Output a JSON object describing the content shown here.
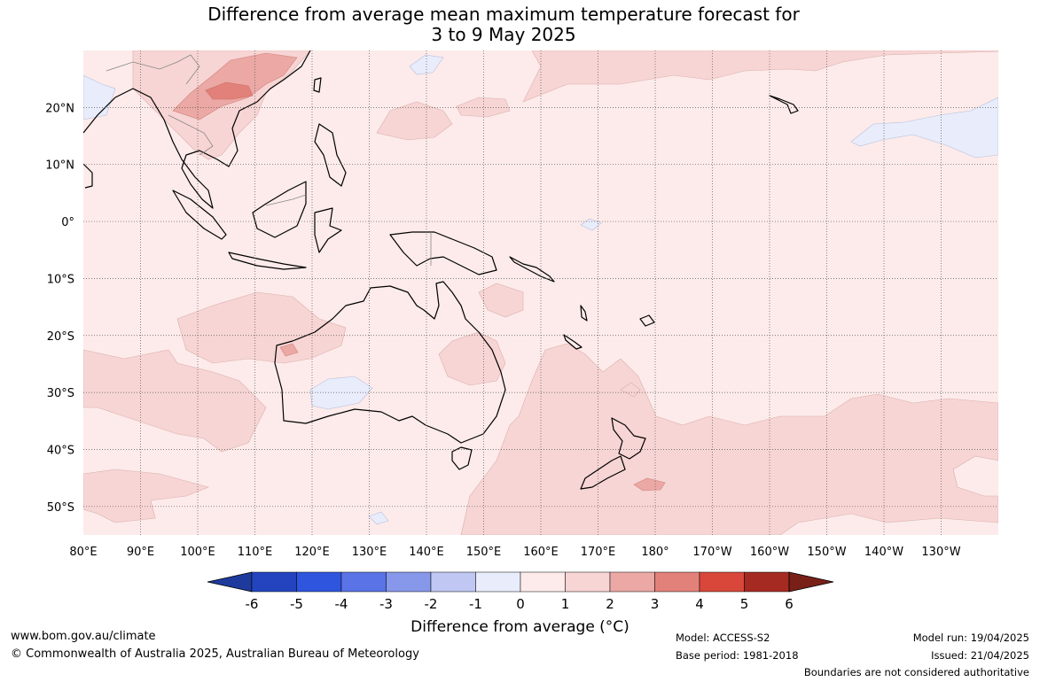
{
  "title": {
    "line1": "Difference from average mean maximum temperature forecast for",
    "line2": "3 to 9 May 2025"
  },
  "map": {
    "lon_range": [
      80,
      240
    ],
    "lat_range": [
      -55,
      30
    ],
    "lon_ticks": [
      {
        "value": 80,
        "label": "80°E"
      },
      {
        "value": 90,
        "label": "90°E"
      },
      {
        "value": 100,
        "label": "100°E"
      },
      {
        "value": 110,
        "label": "110°E"
      },
      {
        "value": 120,
        "label": "120°E"
      },
      {
        "value": 130,
        "label": "130°E"
      },
      {
        "value": 140,
        "label": "140°E"
      },
      {
        "value": 150,
        "label": "150°E"
      },
      {
        "value": 160,
        "label": "160°E"
      },
      {
        "value": 170,
        "label": "170°E"
      },
      {
        "value": 180,
        "label": "180°"
      },
      {
        "value": 190,
        "label": "170°W"
      },
      {
        "value": 200,
        "label": "160°W"
      },
      {
        "value": 210,
        "label": "150°W"
      },
      {
        "value": 220,
        "label": "140°W"
      },
      {
        "value": 230,
        "label": "130°W"
      }
    ],
    "lat_ticks": [
      {
        "value": 20,
        "label": "20°N"
      },
      {
        "value": 10,
        "label": "10°N"
      },
      {
        "value": 0,
        "label": "0°"
      },
      {
        "value": -10,
        "label": "10°S"
      },
      {
        "value": -20,
        "label": "20°S"
      },
      {
        "value": -30,
        "label": "30°S"
      },
      {
        "value": -40,
        "label": "40°S"
      },
      {
        "value": -50,
        "label": "50°S"
      }
    ],
    "background_color": "#fcebea"
  },
  "colorbar": {
    "labels": [
      "-6",
      "-5",
      "-4",
      "-3",
      "-2",
      "-1",
      "0",
      "1",
      "2",
      "3",
      "4",
      "5",
      "6"
    ],
    "colors": [
      "#1e3a9c",
      "#2344be",
      "#2f55de",
      "#5a73e6",
      "#8798ea",
      "#bfc7f2",
      "#e9ecfb",
      "#fcebea",
      "#f7d5d4",
      "#eba8a4",
      "#e2817a",
      "#d9473b",
      "#a52a22",
      "#782018"
    ],
    "title": "Difference from average (°C)"
  },
  "footer": {
    "url": "www.bom.gov.au/climate",
    "copyright": "© Commonwealth of Australia 2025, Australian Bureau of Meteorology",
    "model": "Model: ACCESS-S2",
    "base_period": "Base period: 1981-2018",
    "model_run": "Model run: 19/04/2025",
    "issued": "Issued: 21/04/2025",
    "disclaimer": "Boundaries are not considered authoritative"
  }
}
